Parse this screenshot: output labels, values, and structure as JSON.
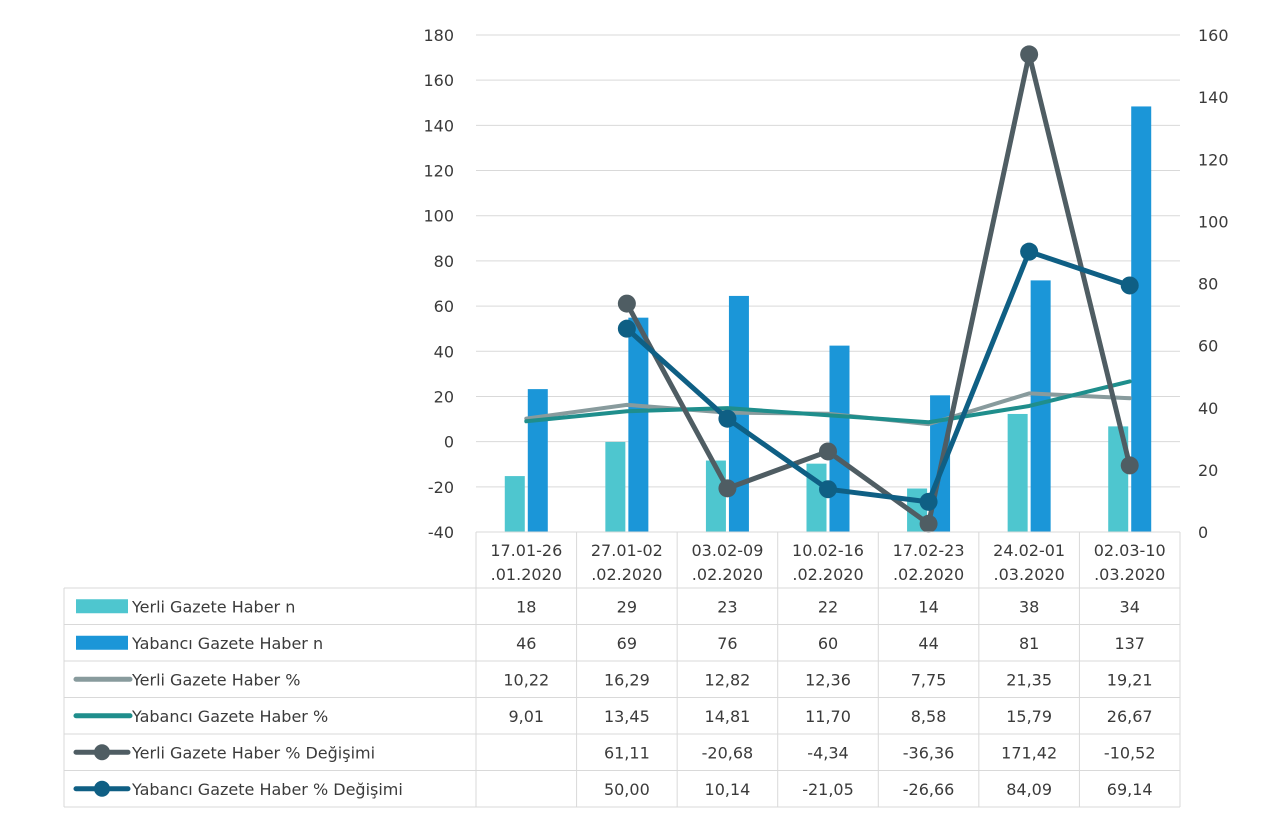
{
  "chart_data": {
    "type": "bar",
    "categories": [
      [
        "17.01-26",
        ".01.2020"
      ],
      [
        "27.01-02",
        ".02.2020"
      ],
      [
        "03.02-09",
        ".02.2020"
      ],
      [
        "10.02-16",
        ".02.2020"
      ],
      [
        "17.02-23",
        ".02.2020"
      ],
      [
        "24.02-01",
        ".03.2020"
      ],
      [
        "02.03-10",
        ".03.2020"
      ]
    ],
    "y_left": {
      "ylim": [
        -40,
        180
      ],
      "ticks": [
        180,
        160,
        140,
        120,
        100,
        80,
        60,
        40,
        20,
        0,
        -20,
        -40
      ]
    },
    "y_right": {
      "ylim": [
        0,
        160
      ],
      "ticks": [
        160,
        140,
        120,
        100,
        80,
        60,
        40,
        20,
        0
      ]
    },
    "grid": true,
    "legend": "data-table-below",
    "series": [
      {
        "name": "Yerli Gazete Haber n",
        "kind": "bar",
        "axis": "right",
        "color": "#4ec6cf",
        "values": [
          18,
          29,
          23,
          22,
          14,
          38,
          34
        ],
        "display": [
          "18",
          "29",
          "23",
          "22",
          "14",
          "38",
          "34"
        ]
      },
      {
        "name": "Yabancı Gazete Haber n",
        "kind": "bar",
        "axis": "right",
        "color": "#1b96d8",
        "values": [
          46,
          69,
          76,
          60,
          44,
          81,
          137
        ],
        "display": [
          "46",
          "69",
          "76",
          "60",
          "44",
          "81",
          "137"
        ]
      },
      {
        "name": "Yerli Gazete Haber %",
        "kind": "line",
        "axis": "left",
        "color": "#889b9d",
        "marker": false,
        "values": [
          10.22,
          16.29,
          12.82,
          12.36,
          7.75,
          21.35,
          19.21
        ],
        "display": [
          "10,22",
          "16,29",
          "12,82",
          "12,36",
          "7,75",
          "21,35",
          "19,21"
        ]
      },
      {
        "name": "Yabancı Gazete Haber  %",
        "kind": "line",
        "axis": "left",
        "color": "#1f8e8c",
        "marker": false,
        "values": [
          9.01,
          13.45,
          14.81,
          11.7,
          8.58,
          15.79,
          26.67
        ],
        "display": [
          "9,01",
          "13,45",
          "14,81",
          "11,70",
          "8,58",
          "15,79",
          "26,67"
        ]
      },
      {
        "name": "Yerli Gazete Haber % Değişimi",
        "kind": "line",
        "axis": "left",
        "color": "#4f5d63",
        "marker": true,
        "values": [
          null,
          61.11,
          -20.68,
          -4.34,
          -36.36,
          171.42,
          -10.52
        ],
        "display": [
          "",
          "61,11",
          "-20,68",
          "-4,34",
          "-36,36",
          "171,42",
          "-10,52"
        ]
      },
      {
        "name": "Yabancı Gazete Haber % Değişimi",
        "kind": "line",
        "axis": "left",
        "color": "#0f5f84",
        "marker": true,
        "values": [
          null,
          50.0,
          10.14,
          -21.05,
          -26.66,
          84.09,
          69.14
        ],
        "display": [
          "",
          "50,00",
          "10,14",
          "-21,05",
          "-26,66",
          "84,09",
          "69,14"
        ]
      }
    ]
  }
}
